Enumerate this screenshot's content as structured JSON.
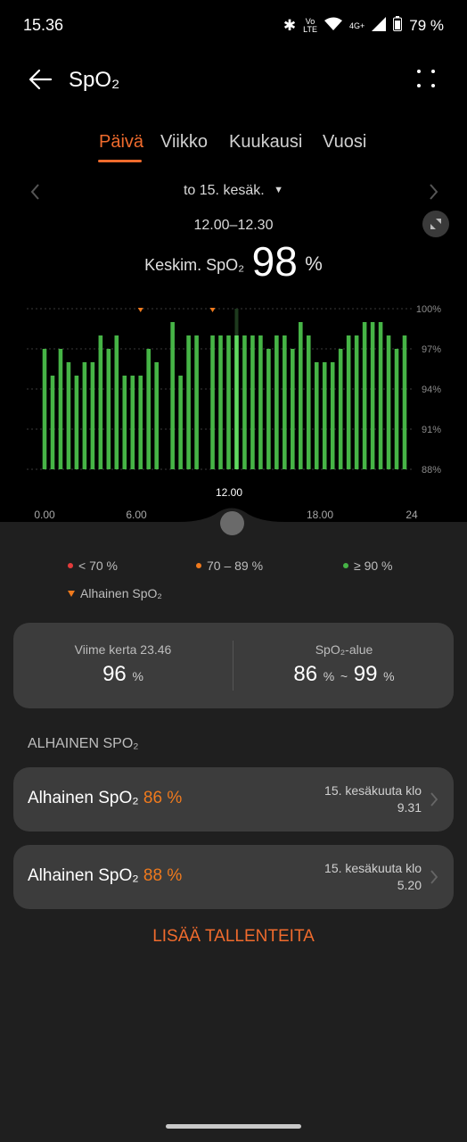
{
  "status": {
    "time": "15.36",
    "battery": "79 %",
    "volte_top": "Vo",
    "volte_bottom": "LTE",
    "network": "4G+"
  },
  "header": {
    "title": "SpO₂"
  },
  "tabs": [
    {
      "label": "Päivä"
    },
    {
      "label": "Viikko"
    },
    {
      "label": "Kuukausi"
    },
    {
      "label": "Vuosi"
    }
  ],
  "date_selector": {
    "label": "to 15. kesäk."
  },
  "selection": {
    "range": "12.00–12.30",
    "avg_label": "Keskim. SpO₂",
    "avg_value": "98",
    "avg_unit": "%"
  },
  "scrubber": {
    "label": "12.00"
  },
  "chart_data": {
    "type": "bar",
    "x_ticks": [
      "0.00",
      "6.00",
      "12.00",
      "18.00",
      "24"
    ],
    "y_ticks": [
      "100%",
      "97%",
      "94%",
      "91%",
      "88%"
    ],
    "ylim": [
      88,
      100
    ],
    "xlim": [
      0,
      24
    ],
    "grid": true,
    "colors": {
      "normal": "#46b446",
      "selected": "#5fd95f",
      "low_marker": "#f07a1d"
    },
    "selected_index": 24,
    "values": [
      97,
      95,
      97,
      96,
      95,
      96,
      96,
      98,
      97,
      98,
      95,
      95,
      95,
      97,
      96,
      null,
      99,
      95,
      98,
      98,
      null,
      98,
      98,
      98,
      98,
      98,
      98,
      98,
      97,
      98,
      98,
      97,
      99,
      98,
      96,
      96,
      96,
      97,
      98,
      98,
      99,
      99,
      99,
      98,
      97,
      98
    ],
    "low_markers": [
      12,
      21
    ]
  },
  "legend": {
    "red": "< 70 %",
    "orange": "70 – 89 %",
    "green": "≥ 90 %",
    "low": "Alhainen SpO₂"
  },
  "stats": {
    "last": {
      "label": "Viime kerta 23.46",
      "value": "96",
      "unit": "%"
    },
    "range": {
      "label": "SpO₂-alue",
      "min": "86",
      "max": "99",
      "unit": "%",
      "sep": "~"
    }
  },
  "low_section": {
    "title": "ALHAINEN SPO₂"
  },
  "records": [
    {
      "label": "Alhainen SpO₂",
      "value": "86 %",
      "date": "15. kesäkuuta klo",
      "time": "9.31"
    },
    {
      "label": "Alhainen SpO₂",
      "value": "88 %",
      "date": "15. kesäkuuta klo",
      "time": "5.20"
    }
  ],
  "more_button": {
    "label": "LISÄÄ TALLENTEITA"
  }
}
